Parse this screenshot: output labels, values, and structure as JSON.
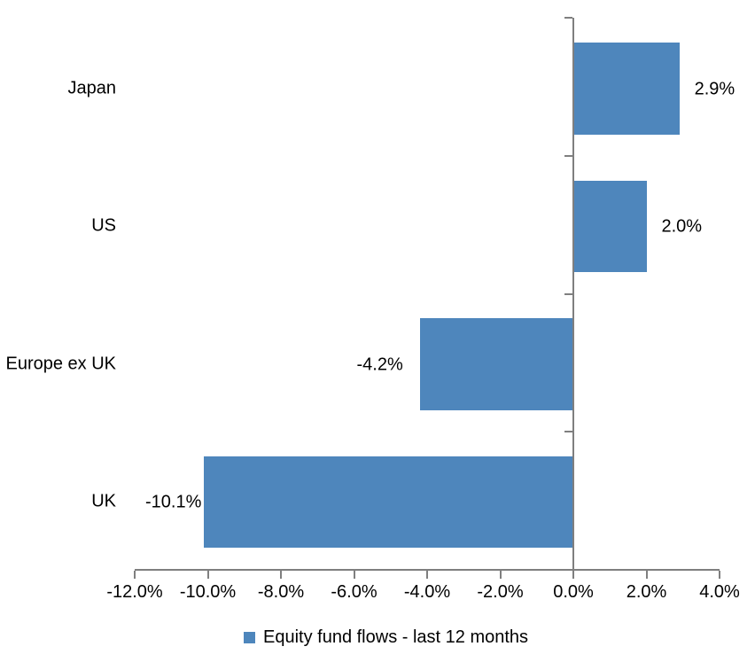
{
  "chart_data": {
    "type": "bar",
    "orientation": "horizontal",
    "title": "",
    "categories": [
      "Japan",
      "US",
      "Europe ex UK",
      "UK"
    ],
    "values": [
      2.9,
      2.0,
      -4.2,
      -10.1
    ],
    "data_labels": [
      "2.9%",
      "2.0%",
      "-4.2%",
      "-10.1%"
    ],
    "x_ticks": [
      -12,
      -10,
      -8,
      -6,
      -4,
      -2,
      0,
      2,
      4
    ],
    "x_tick_labels": [
      "-12.0%",
      "-10.0%",
      "-8.0%",
      "-6.0%",
      "-4.0%",
      "-2.0%",
      "0.0%",
      "2.0%",
      "4.0%"
    ],
    "xlim": [
      -12,
      4
    ],
    "grid": false,
    "legend": {
      "label": "Equity fund flows - last 12 months",
      "position": "bottom"
    },
    "colors": {
      "bar": "#4e86bc",
      "axis": "#7f7f7f",
      "text": "#000000",
      "background": "#ffffff"
    }
  }
}
